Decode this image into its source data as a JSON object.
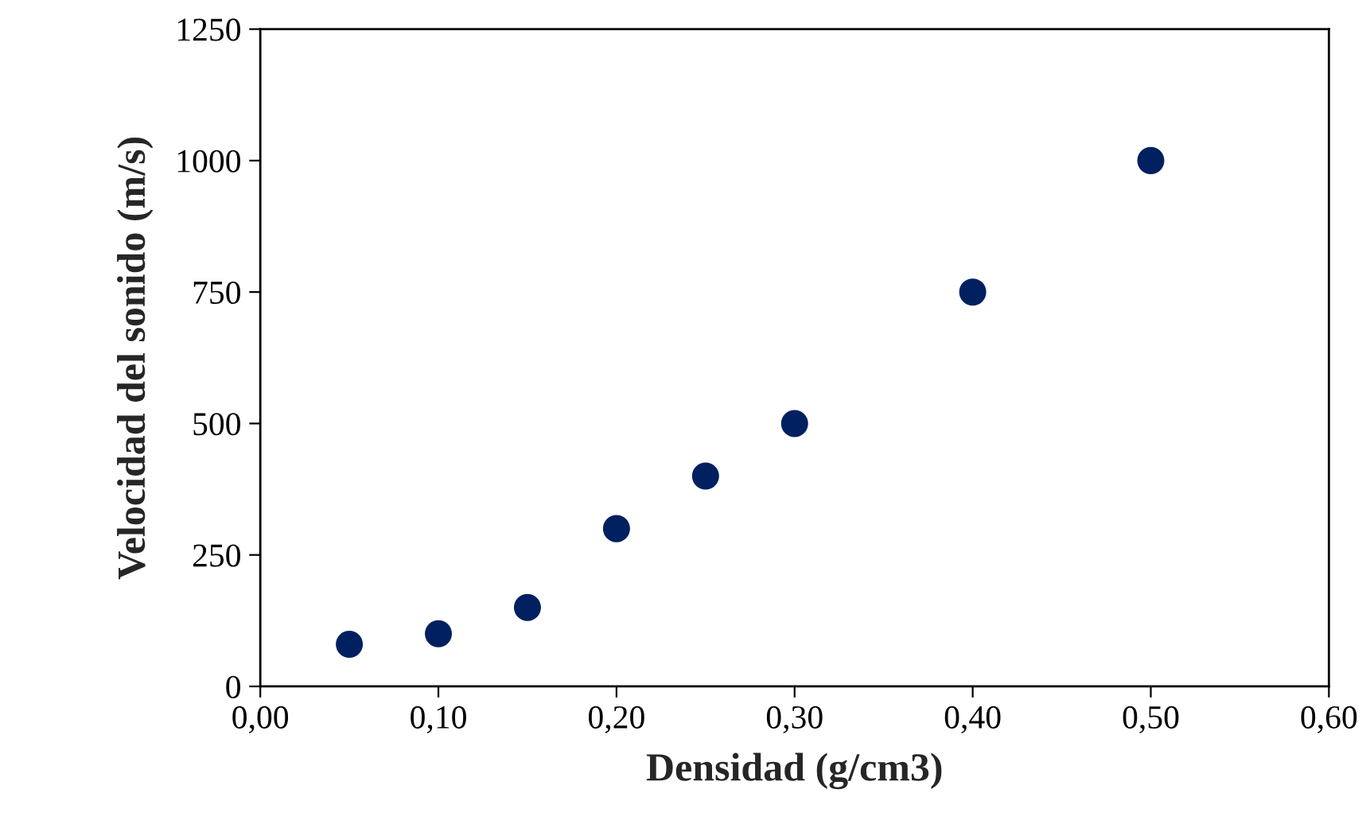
{
  "chart_data": {
    "type": "scatter",
    "xlabel": "Densidad (g/cm3)",
    "ylabel": "Velocidad del sonido (m/s)",
    "x": [
      0.05,
      0.1,
      0.15,
      0.2,
      0.25,
      0.3,
      0.4,
      0.5
    ],
    "series": [
      {
        "color": "#002060",
        "values": [
          80,
          100,
          150,
          300,
          400,
          500,
          750,
          1000
        ]
      }
    ],
    "xlim": [
      0,
      0.6
    ],
    "xticks": [
      {
        "value": 0,
        "label": "0,00"
      },
      {
        "value": 0.1,
        "label": "0,10"
      },
      {
        "value": 0.2,
        "label": "0,20"
      },
      {
        "value": 0.3,
        "label": "0,30"
      },
      {
        "value": 0.4,
        "label": "0,40"
      },
      {
        "value": 0.5,
        "label": "0,50"
      },
      {
        "value": 0.6,
        "label": "0,60"
      }
    ],
    "ylim": [
      0,
      1250
    ],
    "yticks": [
      0,
      250,
      500,
      750,
      1000,
      1250
    ],
    "marker": "circle",
    "grid": false,
    "legend": false
  }
}
